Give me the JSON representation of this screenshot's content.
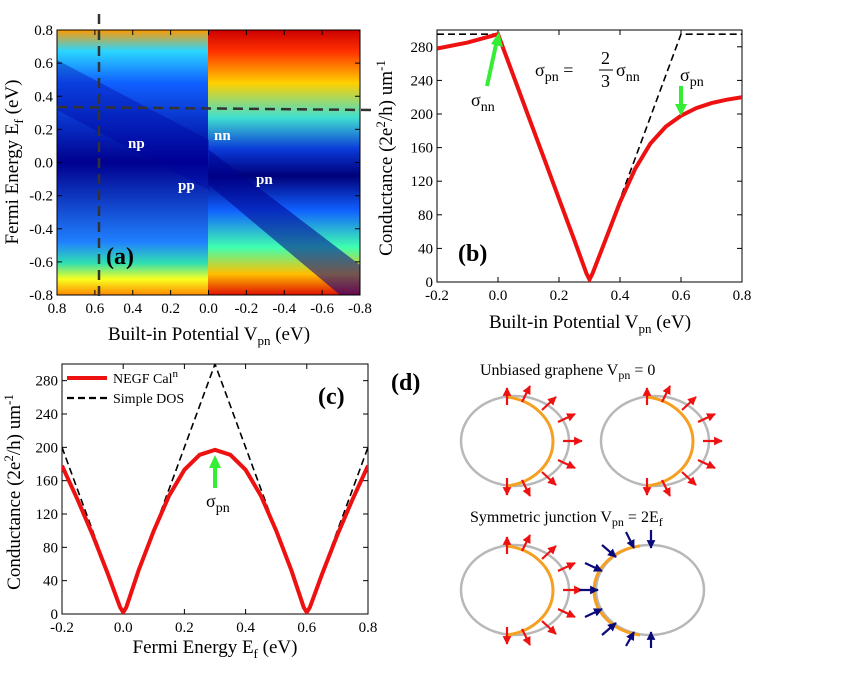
{
  "colors": {
    "red_curve": "#ee1111",
    "green_arrow": "#33ee33",
    "orange_arc": "#f5a020",
    "gray_circle": "#b8b8b8",
    "navy_arrow": "#0a0a7a",
    "red_arrow": "#ee1111"
  },
  "panel_a": {
    "label": "(a)",
    "ylabel_main": "Fermi Energy E",
    "ylabel_sub": "f",
    "ylabel_tail": " (eV)",
    "xlabel_main": "Built-in Potential V",
    "xlabel_sub": "pn",
    "xlabel_tail": " (eV)",
    "regions": {
      "np": "np",
      "nn": "nn",
      "pp": "pp",
      "pn": "pn"
    }
  },
  "panel_b": {
    "label": "(b)",
    "ylabel_main": "Conductance (2e",
    "ylabel_sup": "2",
    "ylabel_tail": "/h) um",
    "ylabel_exp": "-1",
    "xlabel_main": "Built-in Potential V",
    "xlabel_sub": "pn",
    "xlabel_tail": " (eV)",
    "eq_lhs": "σ",
    "eq_lhs_sub": "pn",
    "eq_mid": " = ",
    "eq_num": "2",
    "eq_den": "3",
    "eq_rhs": "σ",
    "eq_rhs_sub": "nn",
    "sigma_nn": "σ",
    "sigma_nn_sub": "nn",
    "sigma_pn": "σ",
    "sigma_pn_sub": "pn"
  },
  "panel_c": {
    "label": "(c)",
    "ylabel_main": "Conductance (2e",
    "ylabel_sup": "2",
    "ylabel_tail": "/h) um",
    "ylabel_exp": "-1",
    "xlabel_main": "Fermi Energy E",
    "xlabel_sub": "f",
    "xlabel_tail": " (eV)",
    "legend_negf": "NEGF Cal",
    "legend_negf_sup": "n",
    "legend_dos": "Simple DOS",
    "sigma_pn": "σ",
    "sigma_pn_sub": "pn"
  },
  "panel_d": {
    "label": "(d)",
    "title1_main": "Unbiased graphene V",
    "title1_sub": "pn",
    "title1_tail": " = 0",
    "title2_main": "Symmetric junction V",
    "title2_sub": "pn",
    "title2_tail": " = 2E",
    "title2_sub2": "f"
  },
  "chart_data": [
    {
      "type": "heatmap",
      "panel": "(a)",
      "xlabel": "Built-in Potential Vpn (eV)",
      "ylabel": "Fermi Energy Ef (eV)",
      "xlim": [
        0.8,
        -0.8
      ],
      "ylim": [
        -0.8,
        0.8
      ],
      "x_ticks": [
        "0.8",
        "0.6",
        "0.4",
        "0.2",
        "0.0",
        "-0.2",
        "-0.4",
        "-0.6",
        "-0.8"
      ],
      "y_ticks": [
        "-0.8",
        "-0.6",
        "-0.4",
        "-0.2",
        "0.0",
        "0.2",
        "0.4",
        "0.6",
        "0.8"
      ],
      "dashed_lines": {
        "x": 0.56,
        "y": 0.32
      },
      "region_labels": [
        {
          "text": "np",
          "x": 0.5,
          "y": 0.1
        },
        {
          "text": "nn",
          "x": -0.1,
          "y": 0.15
        },
        {
          "text": "pp",
          "x": 0.15,
          "y": -0.1
        },
        {
          "text": "pn",
          "x": -0.35,
          "y": -0.08
        }
      ]
    },
    {
      "type": "line",
      "panel": "(b)",
      "xlabel": "Built-in Potential Vpn (eV)",
      "ylabel": "Conductance (2e2/h) um-1",
      "xlim": [
        -0.2,
        0.8
      ],
      "ylim": [
        0,
        300
      ],
      "x_ticks": [
        "-0.2",
        "0.0",
        "0.2",
        "0.4",
        "0.6",
        "0.8"
      ],
      "y_ticks": [
        "0",
        "40",
        "80",
        "120",
        "160",
        "200",
        "240",
        "280"
      ],
      "series": [
        {
          "style": "solid-red",
          "x": [
            -0.2,
            -0.1,
            0.0,
            0.05,
            0.1,
            0.15,
            0.2,
            0.25,
            0.29,
            0.3,
            0.31,
            0.35,
            0.4,
            0.45,
            0.5,
            0.55,
            0.6,
            0.65,
            0.7,
            0.75,
            0.8
          ],
          "y": [
            278,
            285,
            295,
            246,
            197,
            148,
            99,
            50,
            10,
            3,
            10,
            48,
            95,
            135,
            165,
            185,
            198,
            207,
            213,
            217,
            220
          ]
        },
        {
          "style": "dashed-black",
          "x": [
            -0.2,
            0.0,
            0.3,
            0.6,
            0.8
          ],
          "y": [
            295,
            295,
            0,
            295,
            295
          ]
        }
      ],
      "annotations": [
        {
          "text": "σnn",
          "x": 0.0,
          "y": 295
        },
        {
          "text": "σpn",
          "x": 0.6,
          "y": 195
        },
        {
          "text": "σpn = 2/3 σnn"
        }
      ]
    },
    {
      "type": "line",
      "panel": "(c)",
      "xlabel": "Fermi Energy Ef (eV)",
      "ylabel": "Conductance (2e2/h) um-1",
      "xlim": [
        -0.2,
        0.8
      ],
      "ylim": [
        0,
        300
      ],
      "x_ticks": [
        "-0.2",
        "0.0",
        "0.2",
        "0.4",
        "0.6",
        "0.8"
      ],
      "y_ticks": [
        "0",
        "40",
        "80",
        "120",
        "160",
        "200",
        "240",
        "280"
      ],
      "legend": "top-left",
      "series": [
        {
          "name": "NEGF Cal",
          "style": "solid-red",
          "x": [
            -0.2,
            -0.15,
            -0.1,
            -0.05,
            -0.01,
            0.0,
            0.01,
            0.05,
            0.1,
            0.15,
            0.2,
            0.25,
            0.3,
            0.35,
            0.4,
            0.45,
            0.5,
            0.55,
            0.59,
            0.6,
            0.61,
            0.65,
            0.7,
            0.75,
            0.8
          ],
          "y": [
            178,
            138,
            95,
            48,
            8,
            2,
            8,
            52,
            100,
            142,
            173,
            191,
            197,
            191,
            173,
            142,
            100,
            52,
            8,
            2,
            8,
            48,
            95,
            138,
            178
          ]
        },
        {
          "name": "Simple DOS",
          "style": "dashed-black",
          "x": [
            -0.2,
            0.0,
            0.3,
            0.6,
            0.8
          ],
          "y": [
            200,
            0,
            300,
            0,
            200
          ]
        }
      ],
      "annotations": [
        {
          "text": "σpn",
          "x": 0.3,
          "y": 195
        }
      ]
    }
  ]
}
